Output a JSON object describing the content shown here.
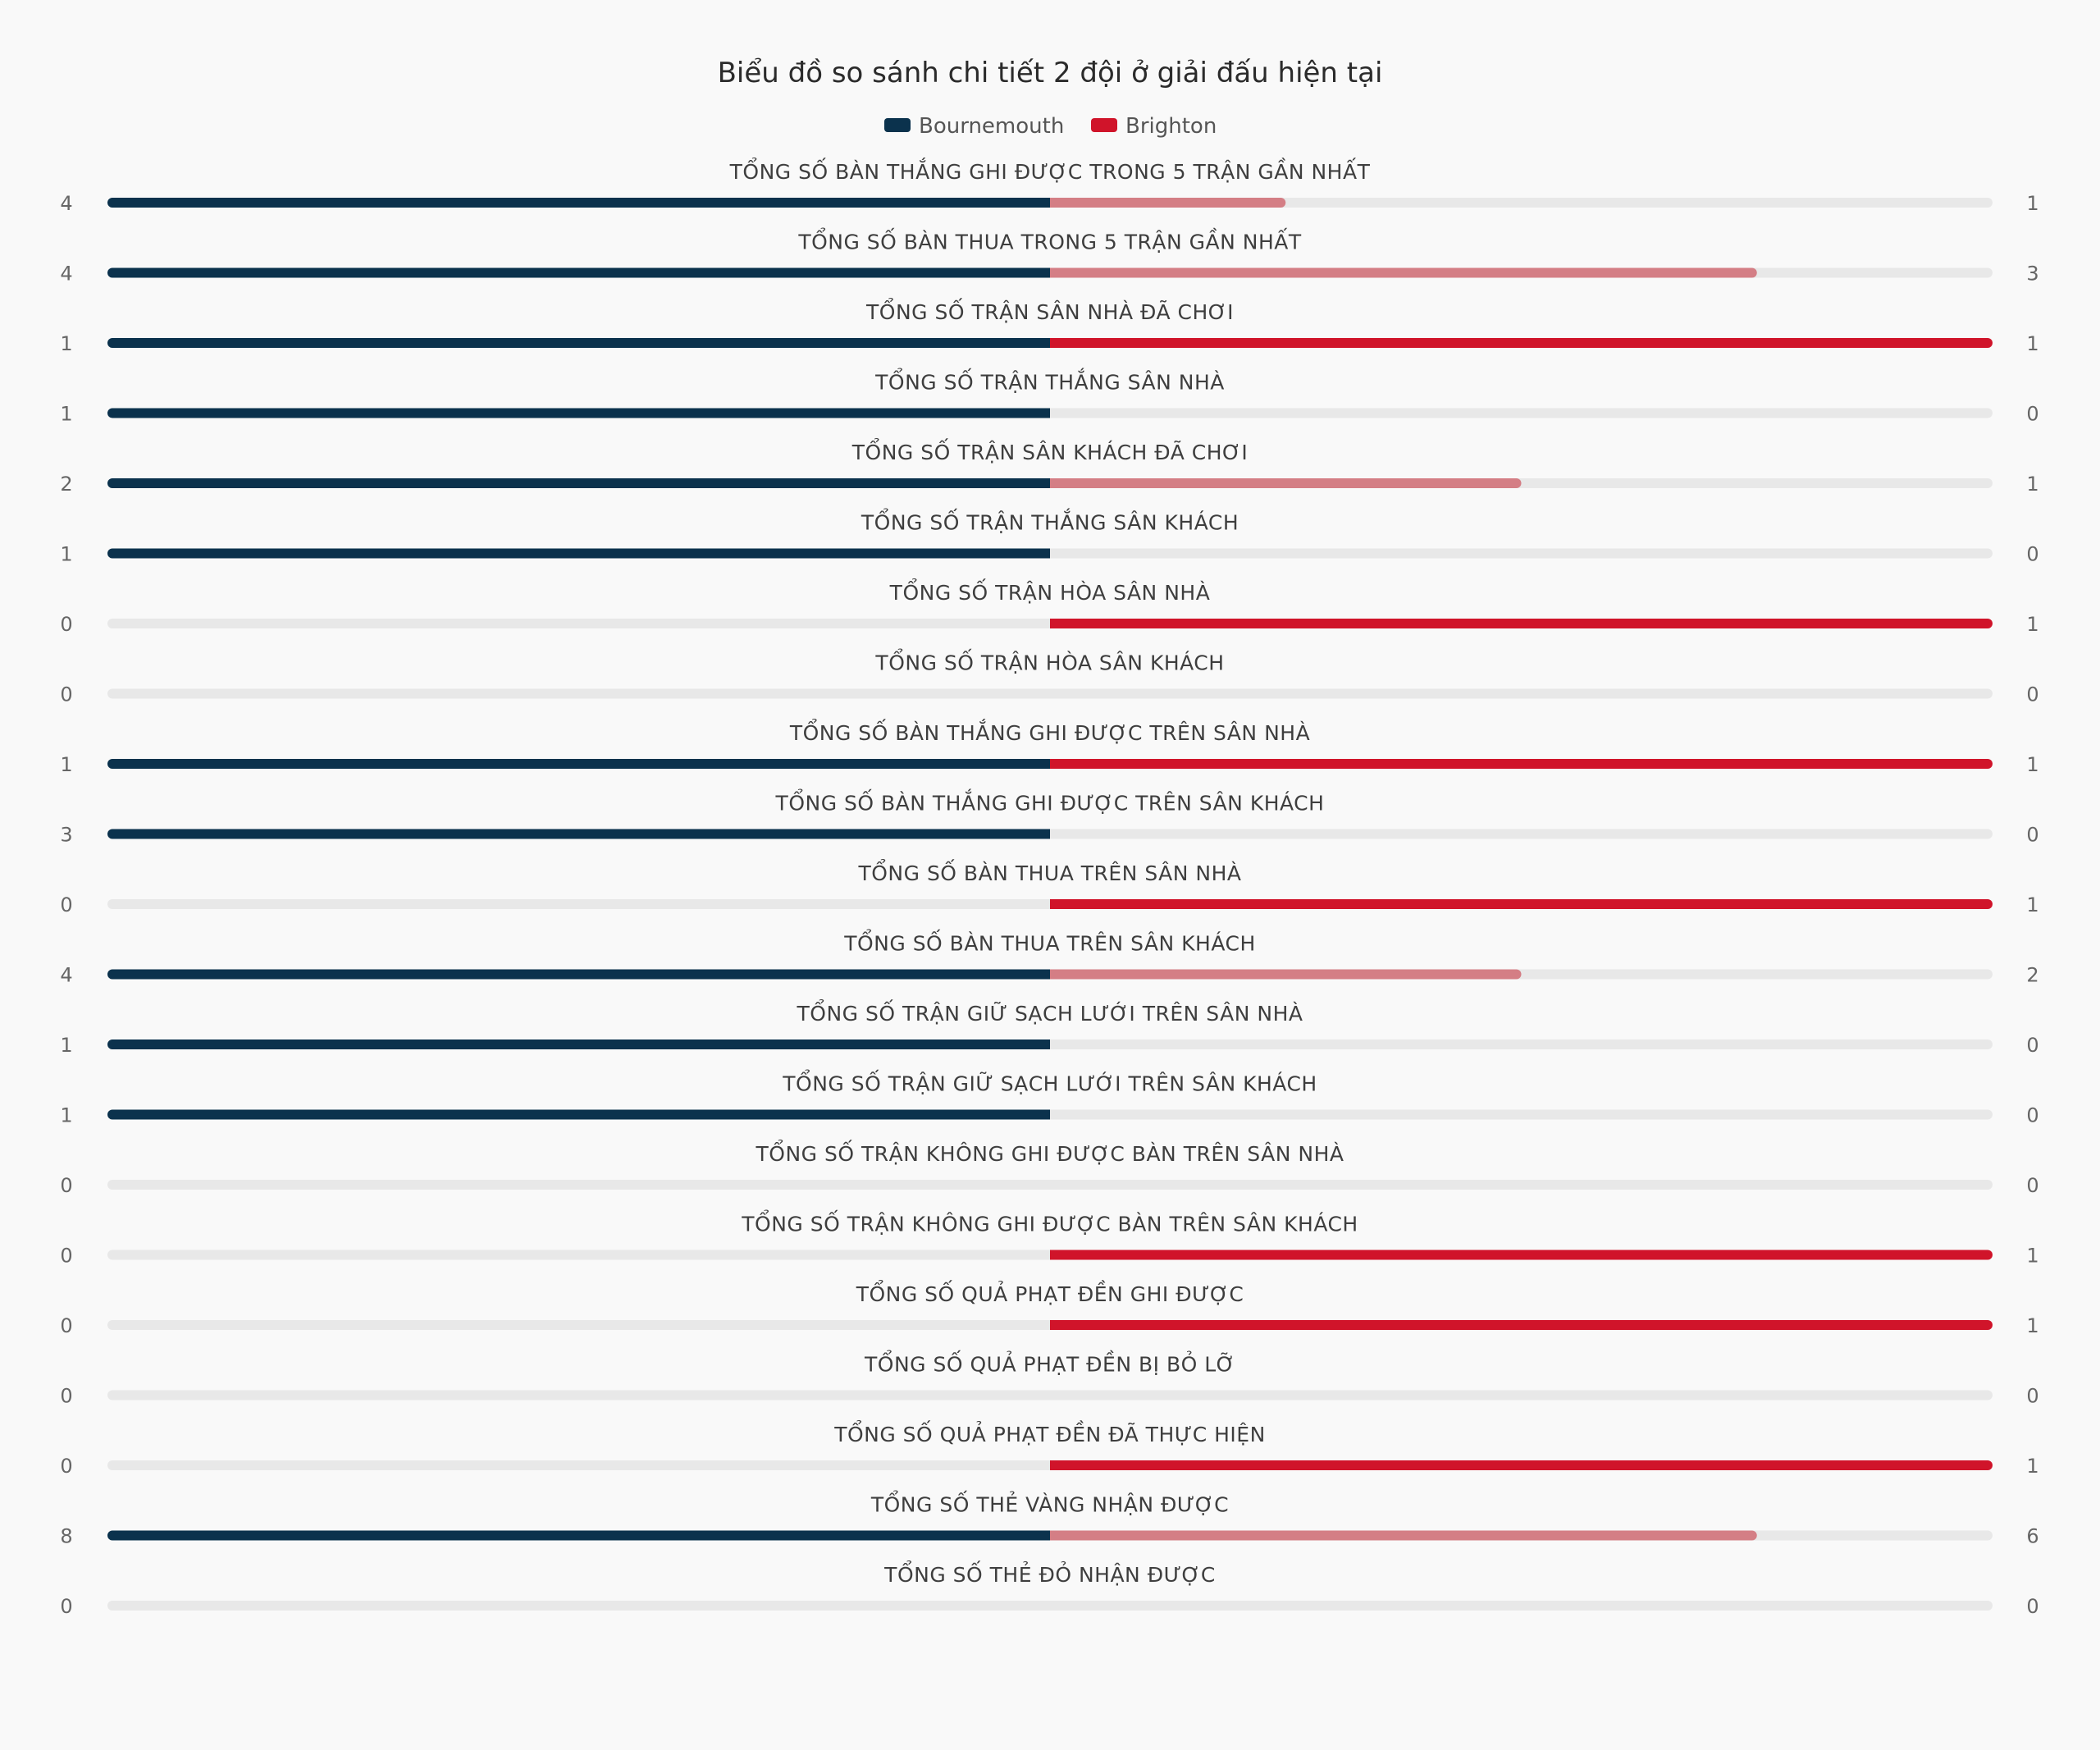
{
  "chart_data": {
    "type": "bar",
    "orientation": "horizontal-diverging",
    "title": "Biểu đồ so sánh chi tiết 2 đội ở giải đấu hiện tại",
    "legend": {
      "placement": "top-center",
      "entries": [
        "Bournemouth",
        "Brighton"
      ]
    },
    "colors": {
      "Bournemouth": "#0b324d",
      "Brighton": "#d0142a",
      "Brighton_faded": "#d47e85",
      "track": "#e8e8e8"
    },
    "series": [
      {
        "name": "Bournemouth",
        "values": [
          4,
          4,
          1,
          1,
          2,
          1,
          0,
          0,
          1,
          3,
          0,
          4,
          1,
          1,
          0,
          0,
          0,
          0,
          0,
          8,
          0
        ]
      },
      {
        "name": "Brighton",
        "values": [
          1,
          3,
          1,
          0,
          1,
          0,
          1,
          0,
          1,
          0,
          1,
          2,
          0,
          0,
          0,
          1,
          1,
          0,
          1,
          6,
          0
        ]
      }
    ],
    "categories": [
      "TỔNG SỐ BÀN THẮNG GHI ĐƯỢC TRONG 5 TRẬN GẦN NHẤT",
      "TỔNG SỐ BÀN THUA TRONG 5 TRẬN GẦN NHẤT",
      "TỔNG SỐ TRẬN SÂN NHÀ ĐÃ CHƠI",
      "TỔNG SỐ TRẬN THẮNG SÂN NHÀ",
      "TỔNG SỐ TRẬN SÂN KHÁCH ĐÃ CHƠI",
      "TỔNG SỐ TRẬN THẮNG SÂN KHÁCH",
      "TỔNG SỐ TRẬN HÒA SÂN NHÀ",
      "TỔNG SỐ TRẬN HÒA SÂN KHÁCH",
      "TỔNG SỐ BÀN THẮNG GHI ĐƯỢC TRÊN SÂN NHÀ",
      "TỔNG SỐ BÀN THẮNG GHI ĐƯỢC TRÊN SÂN KHÁCH",
      "TỔNG SỐ BÀN THUA TRÊN SÂN NHÀ",
      "TỔNG SỐ BÀN THUA TRÊN SÂN KHÁCH",
      "TỔNG SỐ TRẬN GIỮ SẠCH LƯỚI TRÊN SÂN NHÀ",
      "TỔNG SỐ TRẬN GIỮ SẠCH LƯỚI TRÊN SÂN KHÁCH",
      "TỔNG SỐ TRẬN KHÔNG GHI ĐƯỢC BÀN TRÊN SÂN NHÀ",
      "TỔNG SỐ TRẬN KHÔNG GHI ĐƯỢC BÀN TRÊN SÂN KHÁCH",
      "TỔNG SỐ QUẢ PHẠT ĐỀN GHI ĐƯỢC",
      "TỔNG SỐ QUẢ PHẠT ĐỀN BỊ BỎ LỠ",
      "TỔNG SỐ QUẢ PHẠT ĐỀN ĐÃ THỰC HIỆN",
      "TỔNG SỐ THẺ VÀNG NHẬN ĐƯỢC",
      "TỔNG SỐ THẺ ĐỎ NHẬN ĐƯỢC"
    ]
  }
}
